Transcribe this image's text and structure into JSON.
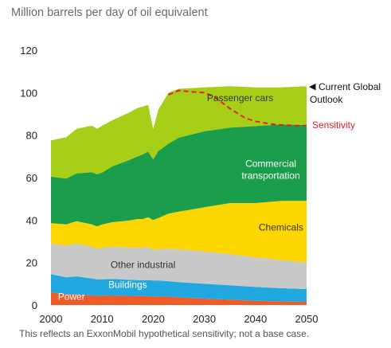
{
  "chart_data": {
    "type": "area",
    "title": "Million barrels per day of oil equivalent",
    "footnote": "This reflects an ExxonMobil hypothetical sensitivity; not a base case.",
    "ylim": [
      0,
      120
    ],
    "xlim": [
      2000,
      2050
    ],
    "y_ticks": [
      0,
      20,
      40,
      60,
      80,
      100,
      120
    ],
    "x_ticks": [
      2000,
      2010,
      2020,
      2030,
      2040,
      2050
    ],
    "grid": false,
    "legend": "labels placed inside areas",
    "x": [
      2000,
      2003,
      2005,
      2008,
      2009,
      2010,
      2012,
      2015,
      2017,
      2018,
      2019,
      2020,
      2021,
      2023,
      2025,
      2030,
      2035,
      2040,
      2045,
      2050
    ],
    "series": [
      {
        "name": "Power",
        "color": "#ee5b28",
        "label_color": "#ffffff",
        "label_at": [
          2004,
          2.5
        ],
        "values": [
          6,
          5,
          5,
          4.5,
          4.3,
          4.4,
          4.5,
          4.3,
          4.2,
          4.2,
          4.1,
          4.0,
          4.0,
          3.9,
          3.6,
          3.0,
          2.5,
          2.0,
          1.7,
          1.5
        ]
      },
      {
        "name": "Buildings",
        "color": "#22a8e0",
        "label_color": "#ffffff",
        "label_at": [
          2015,
          8
        ],
        "values": [
          8.5,
          8,
          8.5,
          8,
          7.8,
          7.7,
          7.8,
          7.6,
          7.5,
          7.5,
          7.6,
          7.5,
          7.6,
          7.3,
          7.2,
          7.0,
          6.8,
          6.5,
          6.2,
          6.0
        ]
      },
      {
        "name": "Other industrial",
        "color": "#c9c9c9",
        "label_color": "#333333",
        "label_at": [
          2018,
          17.5
        ],
        "values": [
          14.5,
          15,
          15.5,
          15,
          14.4,
          14.8,
          15.2,
          15.3,
          15.5,
          15.3,
          15.6,
          14.5,
          14.8,
          15.3,
          15.5,
          15.2,
          14.7,
          14.0,
          13.3,
          12.5
        ]
      },
      {
        "name": "Chemicals",
        "color": "#fed600",
        "label_color": "#333333",
        "label_at": [
          2045,
          35
        ],
        "values": [
          9.5,
          10,
          10.5,
          10.5,
          10.5,
          11.0,
          11.5,
          12.5,
          13.3,
          13.5,
          14.0,
          14.0,
          14.6,
          16.5,
          17.7,
          20.8,
          24.0,
          25.5,
          27.8,
          29.0
        ]
      },
      {
        "name": "Commercial transportation",
        "color": "#1a9e4b",
        "label_color": "#ffffff",
        "label_at": [
          2043,
          65
        ],
        "values": [
          22,
          21.5,
          22.5,
          24.5,
          24.5,
          24.5,
          26.3,
          28.3,
          29.5,
          30.5,
          31.0,
          28.5,
          31.5,
          33.0,
          34.8,
          35.8,
          35.5,
          36.3,
          36.0,
          35.7
        ]
      },
      {
        "name": "Passenger cars",
        "color": "#a8cf18",
        "label_color": "#333333",
        "label_at": [
          2037,
          96
        ],
        "values": [
          17,
          19.5,
          21,
          22,
          21.5,
          22.0,
          21.7,
          22.3,
          22.8,
          22.5,
          22.0,
          14.5,
          19.5,
          24.0,
          23.0,
          20.7,
          19.5,
          18.2,
          17.5,
          18.3
        ]
      }
    ],
    "annotations": [
      {
        "text": "Current Global",
        "text2": "Outlook",
        "marker": "◀"
      },
      {
        "text": "Sensitivity",
        "color": "#e21e26"
      }
    ],
    "sensitivity_line": {
      "name": "Sensitivity",
      "color": "#e21e26",
      "style": "dashed",
      "x": [
        2023,
        2025,
        2027,
        2030,
        2032,
        2035,
        2038,
        2040,
        2043,
        2045,
        2048,
        2050
      ],
      "y": [
        99,
        101,
        100.5,
        100,
        98,
        92.5,
        88,
        86.5,
        85.2,
        84.8,
        84.5,
        84.5
      ]
    }
  }
}
